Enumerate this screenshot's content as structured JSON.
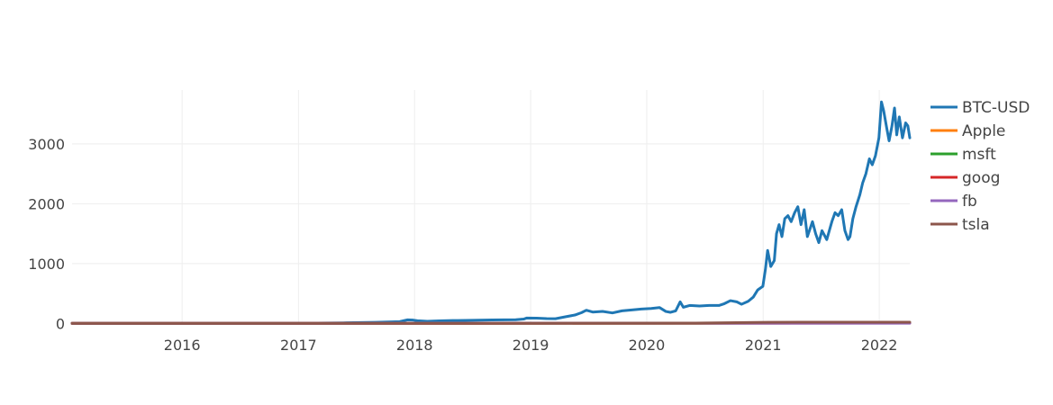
{
  "chart_data": {
    "type": "line",
    "title": "",
    "xlabel": "",
    "ylabel": "",
    "xlim": [
      "2015-01-20",
      "2022-04-07"
    ],
    "ylim": [
      -10,
      3900
    ],
    "x_ticks": [
      "2016",
      "2017",
      "2018",
      "2019",
      "2020",
      "2021",
      "2022"
    ],
    "y_ticks": [
      0,
      1000,
      2000,
      3000
    ],
    "grid": true,
    "legend_position": "top-right",
    "series": [
      {
        "name": "BTC-USD",
        "color": "#1f77b4",
        "points": [
          [
            "2015-01-20",
            1.0
          ],
          [
            "2015-06-01",
            1.0
          ],
          [
            "2016-01-01",
            1.8
          ],
          [
            "2016-06-01",
            2.6
          ],
          [
            "2016-12-01",
            3.4
          ],
          [
            "2017-03-01",
            5
          ],
          [
            "2017-06-01",
            10
          ],
          [
            "2017-09-01",
            18
          ],
          [
            "2017-11-15",
            30
          ],
          [
            "2017-12-10",
            60
          ],
          [
            "2017-12-28",
            55
          ],
          [
            "2018-01-10",
            45
          ],
          [
            "2018-02-10",
            35
          ],
          [
            "2018-03-20",
            42
          ],
          [
            "2018-05-01",
            48
          ],
          [
            "2018-07-01",
            52
          ],
          [
            "2018-09-01",
            58
          ],
          [
            "2018-11-15",
            62
          ],
          [
            "2018-12-10",
            72
          ],
          [
            "2018-12-20",
            90
          ],
          [
            "2019-01-20",
            88
          ],
          [
            "2019-02-20",
            80
          ],
          [
            "2019-03-20",
            78
          ],
          [
            "2019-04-20",
            110
          ],
          [
            "2019-05-20",
            140
          ],
          [
            "2019-06-10",
            180
          ],
          [
            "2019-06-25",
            220
          ],
          [
            "2019-07-15",
            190
          ],
          [
            "2019-08-15",
            200
          ],
          [
            "2019-09-15",
            175
          ],
          [
            "2019-10-15",
            210
          ],
          [
            "2019-11-15",
            225
          ],
          [
            "2019-12-15",
            240
          ],
          [
            "2020-01-15",
            250
          ],
          [
            "2020-02-10",
            265
          ],
          [
            "2020-03-01",
            200
          ],
          [
            "2020-03-15",
            185
          ],
          [
            "2020-04-01",
            210
          ],
          [
            "2020-04-15",
            360
          ],
          [
            "2020-04-25",
            270
          ],
          [
            "2020-05-15",
            300
          ],
          [
            "2020-06-15",
            290
          ],
          [
            "2020-07-15",
            300
          ],
          [
            "2020-08-15",
            300
          ],
          [
            "2020-09-01",
            330
          ],
          [
            "2020-09-20",
            380
          ],
          [
            "2020-10-10",
            360
          ],
          [
            "2020-10-25",
            320
          ],
          [
            "2020-11-15",
            370
          ],
          [
            "2020-12-01",
            440
          ],
          [
            "2020-12-15",
            560
          ],
          [
            "2020-12-31",
            620
          ],
          [
            "2021-01-08",
            900
          ],
          [
            "2021-01-15",
            1220
          ],
          [
            "2021-01-25",
            950
          ],
          [
            "2021-02-05",
            1050
          ],
          [
            "2021-02-12",
            1500
          ],
          [
            "2021-02-20",
            1650
          ],
          [
            "2021-03-01",
            1450
          ],
          [
            "2021-03-10",
            1750
          ],
          [
            "2021-03-20",
            1800
          ],
          [
            "2021-03-30",
            1700
          ],
          [
            "2021-04-10",
            1850
          ],
          [
            "2021-04-20",
            1950
          ],
          [
            "2021-04-30",
            1650
          ],
          [
            "2021-05-10",
            1900
          ],
          [
            "2021-05-20",
            1450
          ],
          [
            "2021-06-05",
            1700
          ],
          [
            "2021-06-15",
            1500
          ],
          [
            "2021-06-25",
            1350
          ],
          [
            "2021-07-05",
            1550
          ],
          [
            "2021-07-20",
            1400
          ],
          [
            "2021-08-05",
            1700
          ],
          [
            "2021-08-15",
            1850
          ],
          [
            "2021-08-25",
            1800
          ],
          [
            "2021-09-05",
            1900
          ],
          [
            "2021-09-15",
            1550
          ],
          [
            "2021-09-25",
            1400
          ],
          [
            "2021-10-01",
            1450
          ],
          [
            "2021-10-10",
            1750
          ],
          [
            "2021-10-20",
            1950
          ],
          [
            "2021-11-01",
            2150
          ],
          [
            "2021-11-10",
            2350
          ],
          [
            "2021-11-20",
            2500
          ],
          [
            "2021-12-01",
            2750
          ],
          [
            "2021-12-10",
            2650
          ],
          [
            "2021-12-20",
            2800
          ],
          [
            "2021-12-31",
            3100
          ],
          [
            "2022-01-08",
            3700
          ],
          [
            "2022-01-15",
            3550
          ],
          [
            "2022-01-25",
            3250
          ],
          [
            "2022-02-01",
            3050
          ],
          [
            "2022-02-10",
            3300
          ],
          [
            "2022-02-18",
            3600
          ],
          [
            "2022-02-25",
            3150
          ],
          [
            "2022-03-05",
            3450
          ],
          [
            "2022-03-15",
            3100
          ],
          [
            "2022-03-25",
            3350
          ],
          [
            "2022-04-01",
            3300
          ],
          [
            "2022-04-07",
            3100
          ]
        ]
      },
      {
        "name": "Apple",
        "color": "#ff7f0e",
        "points": [
          [
            "2015-01-20",
            1.0
          ],
          [
            "2016-06-01",
            0.95
          ],
          [
            "2018-06-01",
            1.6
          ],
          [
            "2020-06-01",
            3.0
          ],
          [
            "2022-04-07",
            5.5
          ]
        ]
      },
      {
        "name": "msft",
        "color": "#2ca02c",
        "points": [
          [
            "2015-01-20",
            1.0
          ],
          [
            "2016-06-01",
            1.2
          ],
          [
            "2018-06-01",
            2.2
          ],
          [
            "2020-06-01",
            4.0
          ],
          [
            "2022-04-07",
            6.8
          ]
        ]
      },
      {
        "name": "goog",
        "color": "#d62728",
        "points": [
          [
            "2015-01-20",
            1.0
          ],
          [
            "2016-06-01",
            1.4
          ],
          [
            "2018-06-01",
            2.1
          ],
          [
            "2020-06-01",
            2.7
          ],
          [
            "2022-04-07",
            5.2
          ]
        ]
      },
      {
        "name": "fb",
        "color": "#9467bd",
        "points": [
          [
            "2015-01-20",
            1.0
          ],
          [
            "2016-06-01",
            1.5
          ],
          [
            "2018-06-01",
            2.5
          ],
          [
            "2020-06-01",
            3.1
          ],
          [
            "2022-04-07",
            3.0
          ]
        ]
      },
      {
        "name": "tsla",
        "color": "#8c564b",
        "points": [
          [
            "2015-01-20",
            1.0
          ],
          [
            "2016-06-01",
            1.0
          ],
          [
            "2018-06-01",
            1.4
          ],
          [
            "2020-06-01",
            4.5
          ],
          [
            "2021-01-15",
            19
          ],
          [
            "2022-04-07",
            21
          ]
        ]
      }
    ]
  }
}
